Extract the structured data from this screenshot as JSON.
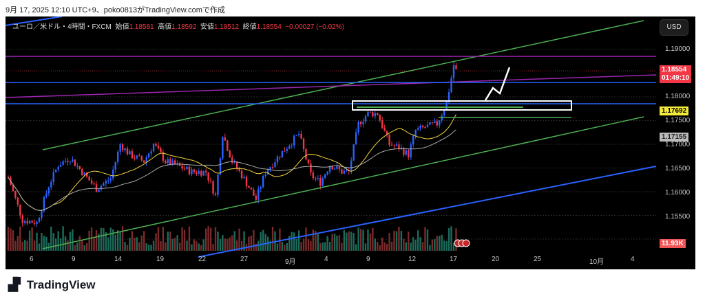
{
  "caption": "9月 17, 2025 12:10 UTC+9、poko0813がTradingView.comで作成",
  "legend": {
    "symbol": "ユーロ／米ドル・4時間・FXCM",
    "open_label": "始値",
    "open": "1.18581",
    "high_label": "高値",
    "high": "1.18592",
    "low_label": "安値",
    "low": "1.18512",
    "close_label": "終値",
    "close": "1.18554",
    "change": "−0.00027 (−0.02%)"
  },
  "currency_button": "USD",
  "price_axis": [
    "1.19000",
    "1.18000",
    "1.17500",
    "1.17000",
    "1.16500",
    "1.16000",
    "1.15500"
  ],
  "tags": {
    "last_price": "1.18554",
    "countdown": "01:49:10",
    "ma_fast": "1.17692",
    "ma_slow": "1.17155",
    "volume": "11.93K"
  },
  "time_axis": [
    "6",
    "9",
    "14",
    "19",
    "22",
    "27",
    "9月",
    "4",
    "9",
    "12",
    "17",
    "20",
    "25",
    "10月",
    "4"
  ],
  "logo": "TradingView",
  "colors": {
    "up": "#2962ff",
    "down": "#f23645",
    "channel": "#4caf50",
    "purple": "#9c27b0",
    "blue": "#2962ff",
    "ma_fast": "#f5d742",
    "ma_slow": "#aaaaaa"
  },
  "chart_data": {
    "type": "candlestick",
    "symbol": "EUR/USD",
    "timeframe": "4h",
    "path": [
      [
        0,
        1.163
      ],
      [
        6,
        1.154
      ],
      [
        12,
        1.1535
      ],
      [
        17,
        1.1613
      ],
      [
        21,
        1.1657
      ],
      [
        26,
        1.1671
      ],
      [
        31,
        1.1642
      ],
      [
        37,
        1.1606
      ],
      [
        43,
        1.1628
      ],
      [
        47,
        1.17
      ],
      [
        51,
        1.1678
      ],
      [
        57,
        1.1664
      ],
      [
        61,
        1.17
      ],
      [
        66,
        1.1664
      ],
      [
        71,
        1.1655
      ],
      [
        77,
        1.1642
      ],
      [
        83,
        1.1642
      ],
      [
        87,
        1.1591
      ],
      [
        90,
        1.1722
      ],
      [
        94,
        1.1664
      ],
      [
        98,
        1.1635
      ],
      [
        104,
        1.1584
      ],
      [
        108,
        1.1642
      ],
      [
        114,
        1.1678
      ],
      [
        118,
        1.17
      ],
      [
        122,
        1.1722
      ],
      [
        127,
        1.1635
      ],
      [
        131,
        1.162
      ],
      [
        135,
        1.1657
      ],
      [
        140,
        1.1642
      ],
      [
        143,
        1.1642
      ],
      [
        147,
        1.1743
      ],
      [
        151,
        1.1765
      ],
      [
        155,
        1.1765
      ],
      [
        160,
        1.17
      ],
      [
        164,
        1.1693
      ],
      [
        168,
        1.1678
      ],
      [
        171,
        1.1729
      ],
      [
        175,
        1.1736
      ],
      [
        180,
        1.1743
      ],
      [
        184,
        1.1787
      ],
      [
        187,
        1.1867
      ],
      [
        188,
        1.1855
      ]
    ],
    "ylim": [
      1.149,
      1.1935
    ]
  }
}
